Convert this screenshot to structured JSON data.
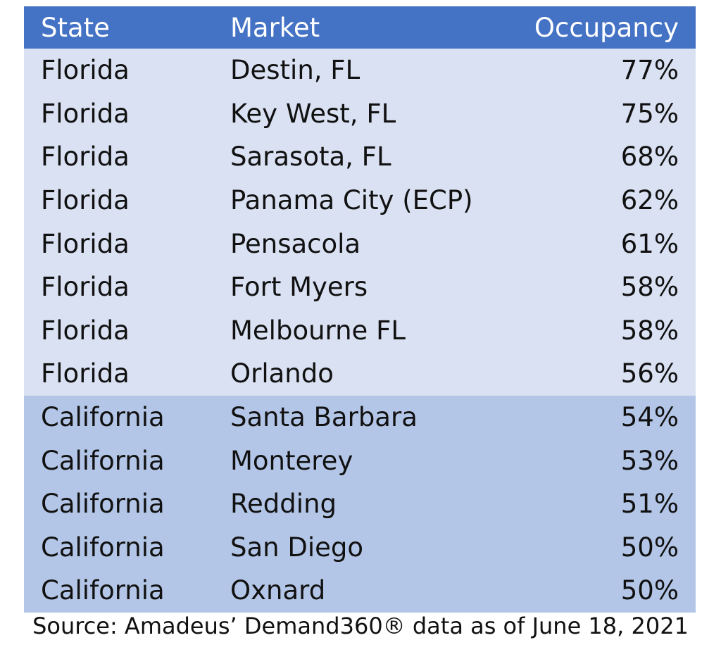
{
  "chart_data": {
    "type": "table",
    "columns": [
      "State",
      "Market",
      "Occupancy"
    ],
    "rows": [
      {
        "state": "Florida",
        "market": "Destin, FL",
        "occupancy": "77%",
        "value": 77,
        "group": "florida"
      },
      {
        "state": "Florida",
        "market": "Key West, FL",
        "occupancy": "75%",
        "value": 75,
        "group": "florida"
      },
      {
        "state": "Florida",
        "market": "Sarasota, FL",
        "occupancy": "68%",
        "value": 68,
        "group": "florida"
      },
      {
        "state": "Florida",
        "market": "Panama City (ECP)",
        "occupancy": "62%",
        "value": 62,
        "group": "florida"
      },
      {
        "state": "Florida",
        "market": "Pensacola",
        "occupancy": "61%",
        "value": 61,
        "group": "florida"
      },
      {
        "state": "Florida",
        "market": "Fort Myers",
        "occupancy": "58%",
        "value": 58,
        "group": "florida"
      },
      {
        "state": "Florida",
        "market": "Melbourne FL",
        "occupancy": "58%",
        "value": 58,
        "group": "florida"
      },
      {
        "state": "Florida",
        "market": "Orlando",
        "occupancy": "56%",
        "value": 56,
        "group": "florida"
      },
      {
        "state": "California",
        "market": "Santa Barbara",
        "occupancy": "54%",
        "value": 54,
        "group": "california"
      },
      {
        "state": "California",
        "market": "Monterey",
        "occupancy": "53%",
        "value": 53,
        "group": "california"
      },
      {
        "state": "California",
        "market": "Redding",
        "occupancy": "51%",
        "value": 51,
        "group": "california"
      },
      {
        "state": "California",
        "market": "San Diego",
        "occupancy": "50%",
        "value": 50,
        "group": "california"
      },
      {
        "state": "California",
        "market": "Oxnard",
        "occupancy": "50%",
        "value": 50,
        "group": "california"
      }
    ]
  },
  "source": "Source: Amadeus’ Demand360® data as of June 18, 2021",
  "colors": {
    "header_bg": "#4472c4",
    "header_text": "#ffffff",
    "florida_bg": "#d9e1f2",
    "california_bg": "#b4c6e7"
  }
}
